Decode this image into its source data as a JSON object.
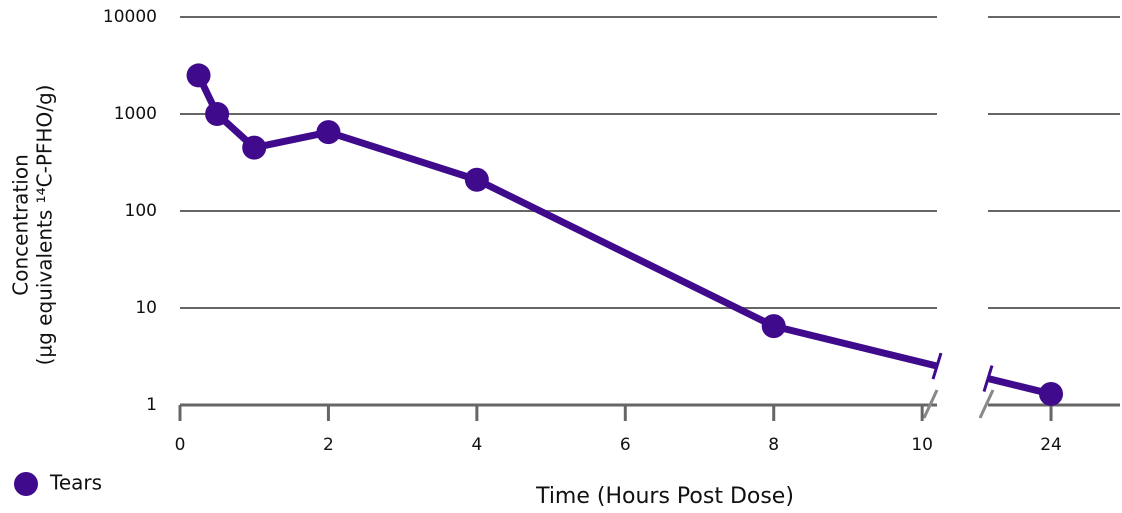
{
  "chart_data": {
    "type": "line",
    "x_label": "Time (Hours Post Dose)",
    "y_label": [
      "Concentration",
      "(µg equivalents ¹⁴C-PFHO/g)"
    ],
    "log_y": true,
    "grid": true,
    "legend": "bottom-left",
    "xlim": [
      0,
      10.2
    ],
    "x2lim": [
      23.15,
      24.93
    ],
    "xticks": [
      0,
      2,
      4,
      6,
      8,
      10
    ],
    "x2ticks": [
      24
    ],
    "ylim": [
      1,
      10000
    ],
    "yticks": [
      1,
      10,
      100,
      1000,
      10000
    ],
    "series": [
      {
        "name": "Tears",
        "color": "#3f0a8c",
        "x": [
          0.25,
          0.5,
          1,
          2,
          4,
          8,
          24
        ],
        "values": [
          2500,
          1000,
          450,
          650,
          210,
          6.5,
          1.3
        ]
      }
    ]
  }
}
